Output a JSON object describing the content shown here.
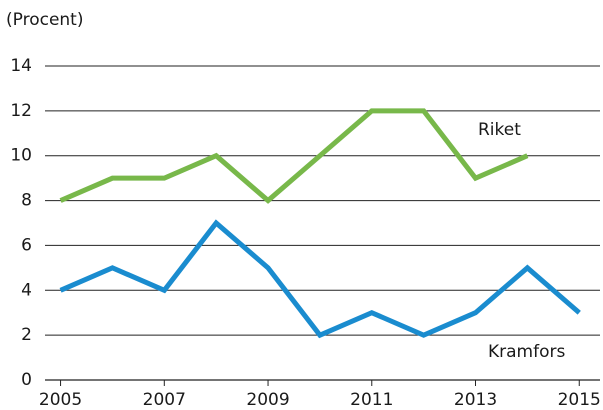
{
  "chart_data": {
    "type": "line",
    "y_label": "(Procent)",
    "x": [
      2005,
      2006,
      2007,
      2008,
      2009,
      2010,
      2011,
      2012,
      2013,
      2014,
      2015
    ],
    "series": [
      {
        "name": "Riket",
        "color": "#78b84a",
        "values": [
          8,
          9,
          9,
          10,
          8,
          10,
          12,
          12,
          9,
          10,
          null
        ]
      },
      {
        "name": "Kramfors",
        "color": "#1a8ccf",
        "values": [
          4,
          5,
          4,
          7,
          5,
          2,
          3,
          2,
          3,
          5,
          3
        ]
      }
    ],
    "xlim": [
      2004.7,
      2015.4
    ],
    "xticks": [
      2005,
      2007,
      2009,
      2011,
      2013,
      2015
    ],
    "ylim": [
      0,
      14
    ],
    "yticks": [
      0,
      2,
      4,
      6,
      8,
      10,
      12,
      14
    ],
    "grid": true
  }
}
